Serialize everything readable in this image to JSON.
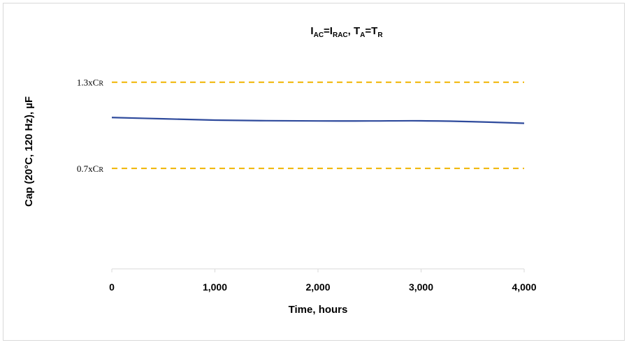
{
  "chart_data": {
    "type": "line",
    "title": {
      "parts": [
        {
          "text": "I",
          "sub": "AC"
        },
        {
          "text": "=I",
          "sub": "RAC"
        },
        {
          "text": ", T",
          "sub": "A"
        },
        {
          "text": "=T",
          "sub": "R"
        }
      ]
    },
    "xlabel": "Time, hours",
    "ylabel": "Cap (20°C, 120 Hz), µF",
    "xlim": [
      0,
      4000
    ],
    "ylim": [
      0,
      1.6
    ],
    "x_ticks": [
      "0",
      "1,000",
      "2,000",
      "3,000",
      "4,000"
    ],
    "x_tick_values": [
      0,
      1000,
      2000,
      3000,
      4000
    ],
    "grid": false,
    "series": [
      {
        "color": "#2e4a9c",
        "x": [
          0,
          500,
          1000,
          1500,
          2000,
          2500,
          3000,
          3500,
          4000
        ],
        "y": [
          1.054,
          1.045,
          1.036,
          1.032,
          1.03,
          1.03,
          1.031,
          1.025,
          1.014
        ]
      }
    ],
    "reference_lines": [
      {
        "y": 1.3,
        "label": "1.3xC",
        "label_sub": "R",
        "color": "#f0b400",
        "style": "dashed"
      },
      {
        "y": 0.7,
        "label": "0.7xC",
        "label_sub": "R",
        "color": "#f0b400",
        "style": "dashed"
      }
    ]
  }
}
